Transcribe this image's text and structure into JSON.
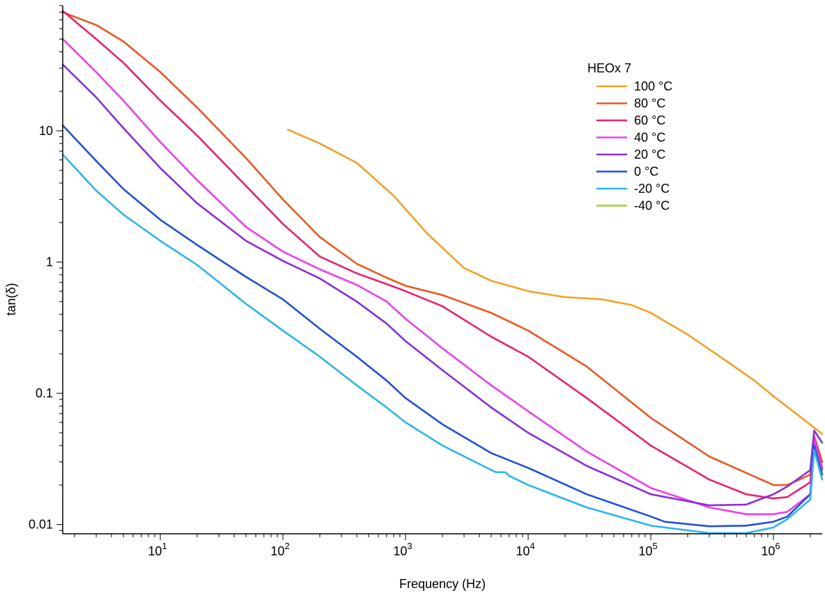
{
  "chart_data": {
    "type": "line",
    "title": "",
    "xlabel": "Frequency (Hz)",
    "ylabel": "tan(δ)",
    "x_scale": "log",
    "y_scale": "log",
    "xlim": [
      1.6,
      2500000
    ],
    "ylim": [
      0.0085,
      90
    ],
    "grid": false,
    "legend_placement": "top-right",
    "legend_title": "HEOx 7",
    "x_ticks": [
      {
        "value": 10,
        "base": "10",
        "exp": "1"
      },
      {
        "value": 100,
        "base": "10",
        "exp": "2"
      },
      {
        "value": 1000,
        "base": "10",
        "exp": "3"
      },
      {
        "value": 10000,
        "base": "10",
        "exp": "4"
      },
      {
        "value": 100000,
        "base": "10",
        "exp": "5"
      },
      {
        "value": 1000000,
        "base": "10",
        "exp": "6"
      }
    ],
    "y_ticks": [
      {
        "value": 10,
        "label": "10"
      },
      {
        "value": 1,
        "label": "1"
      },
      {
        "value": 0.1,
        "label": "0.1"
      },
      {
        "value": 0.01,
        "label": "0.01"
      }
    ],
    "series": [
      {
        "name": "100 °C",
        "color": "#f5a022",
        "x": [
          110,
          200,
          400,
          800,
          1500,
          3000,
          5000,
          10000,
          20000,
          40000,
          70000,
          100000,
          200000,
          400000,
          700000,
          1000000,
          1500000,
          2500000
        ],
        "y": [
          10.2,
          8.0,
          5.7,
          3.2,
          1.65,
          0.9,
          0.72,
          0.6,
          0.54,
          0.52,
          0.47,
          0.41,
          0.28,
          0.18,
          0.125,
          0.095,
          0.071,
          0.049
        ]
      },
      {
        "name": "80 °C",
        "color": "#f0551e",
        "x": [
          1.6,
          3,
          5,
          10,
          20,
          50,
          100,
          200,
          400,
          700,
          1000,
          2000,
          5000,
          10000,
          30000,
          100000,
          300000,
          1000000,
          1300000,
          2000000,
          2150000,
          2500000
        ],
        "y": [
          80,
          64,
          48,
          28,
          15,
          6.2,
          3.0,
          1.55,
          0.97,
          0.76,
          0.66,
          0.56,
          0.41,
          0.3,
          0.16,
          0.065,
          0.033,
          0.02,
          0.02,
          0.024,
          0.047,
          0.03
        ]
      },
      {
        "name": "60 °C",
        "color": "#ee1f6b",
        "x": [
          1.6,
          3,
          5,
          10,
          20,
          50,
          100,
          200,
          400,
          700,
          1000,
          2000,
          5000,
          10000,
          30000,
          100000,
          300000,
          600000,
          1000000,
          1300000,
          2000000,
          2150000,
          2500000
        ],
        "y": [
          82,
          50,
          33,
          17,
          9.2,
          3.8,
          1.95,
          1.1,
          0.82,
          0.68,
          0.6,
          0.46,
          0.27,
          0.19,
          0.092,
          0.04,
          0.022,
          0.017,
          0.0158,
          0.0162,
          0.021,
          0.046,
          0.027
        ]
      },
      {
        "name": "40 °C",
        "color": "#f03cf0",
        "x": [
          1.6,
          3,
          5,
          10,
          20,
          50,
          100,
          200,
          400,
          700,
          1000,
          2000,
          5000,
          10000,
          30000,
          100000,
          300000,
          600000,
          1000000,
          1300000,
          2000000,
          2150000,
          2500000
        ],
        "y": [
          50,
          28,
          17,
          8.2,
          4.2,
          1.85,
          1.2,
          0.88,
          0.67,
          0.5,
          0.37,
          0.22,
          0.115,
          0.073,
          0.036,
          0.019,
          0.0135,
          0.012,
          0.012,
          0.0125,
          0.017,
          0.045,
          0.026
        ]
      },
      {
        "name": "20 °C",
        "color": "#8a2be2",
        "x": [
          1.6,
          3,
          5,
          10,
          20,
          50,
          100,
          200,
          400,
          700,
          1000,
          2000,
          5000,
          10000,
          30000,
          100000,
          300000,
          600000,
          1000000,
          1300000,
          2000000,
          2150000,
          2500000
        ],
        "y": [
          32,
          18,
          10.5,
          5.2,
          2.8,
          1.45,
          1.02,
          0.75,
          0.5,
          0.34,
          0.25,
          0.15,
          0.078,
          0.05,
          0.028,
          0.017,
          0.014,
          0.0142,
          0.017,
          0.0195,
          0.026,
          0.052,
          0.042
        ]
      },
      {
        "name": "0 °C",
        "color": "#1f4fe0",
        "x": [
          1.6,
          3,
          5,
          10,
          20,
          50,
          100,
          200,
          400,
          700,
          1000,
          2000,
          5000,
          10000,
          30000,
          100000,
          130000,
          300000,
          600000,
          1000000,
          1300000,
          2000000,
          2150000,
          2500000
        ],
        "y": [
          11,
          5.9,
          3.6,
          2.1,
          1.35,
          0.77,
          0.52,
          0.31,
          0.19,
          0.125,
          0.092,
          0.058,
          0.035,
          0.027,
          0.017,
          0.0115,
          0.0105,
          0.0097,
          0.0098,
          0.0105,
          0.0115,
          0.017,
          0.04,
          0.024
        ]
      },
      {
        "name": "-20 °C",
        "color": "#29b6ee",
        "x": [
          1.6,
          3,
          5,
          10,
          20,
          50,
          100,
          200,
          400,
          700,
          1000,
          2000,
          5000,
          5500,
          6500,
          7000,
          10000,
          30000,
          100000,
          300000,
          600000,
          1000000,
          1300000,
          2000000,
          2150000,
          2500000
        ],
        "y": [
          6.6,
          3.5,
          2.3,
          1.45,
          0.95,
          0.48,
          0.3,
          0.19,
          0.115,
          0.078,
          0.06,
          0.04,
          0.026,
          0.025,
          0.025,
          0.0235,
          0.02,
          0.0135,
          0.0098,
          0.0086,
          0.0086,
          0.0095,
          0.011,
          0.0155,
          0.037,
          0.022
        ]
      },
      {
        "name": "-40 °C",
        "color": "#9acd32",
        "x": [],
        "y": []
      }
    ]
  }
}
